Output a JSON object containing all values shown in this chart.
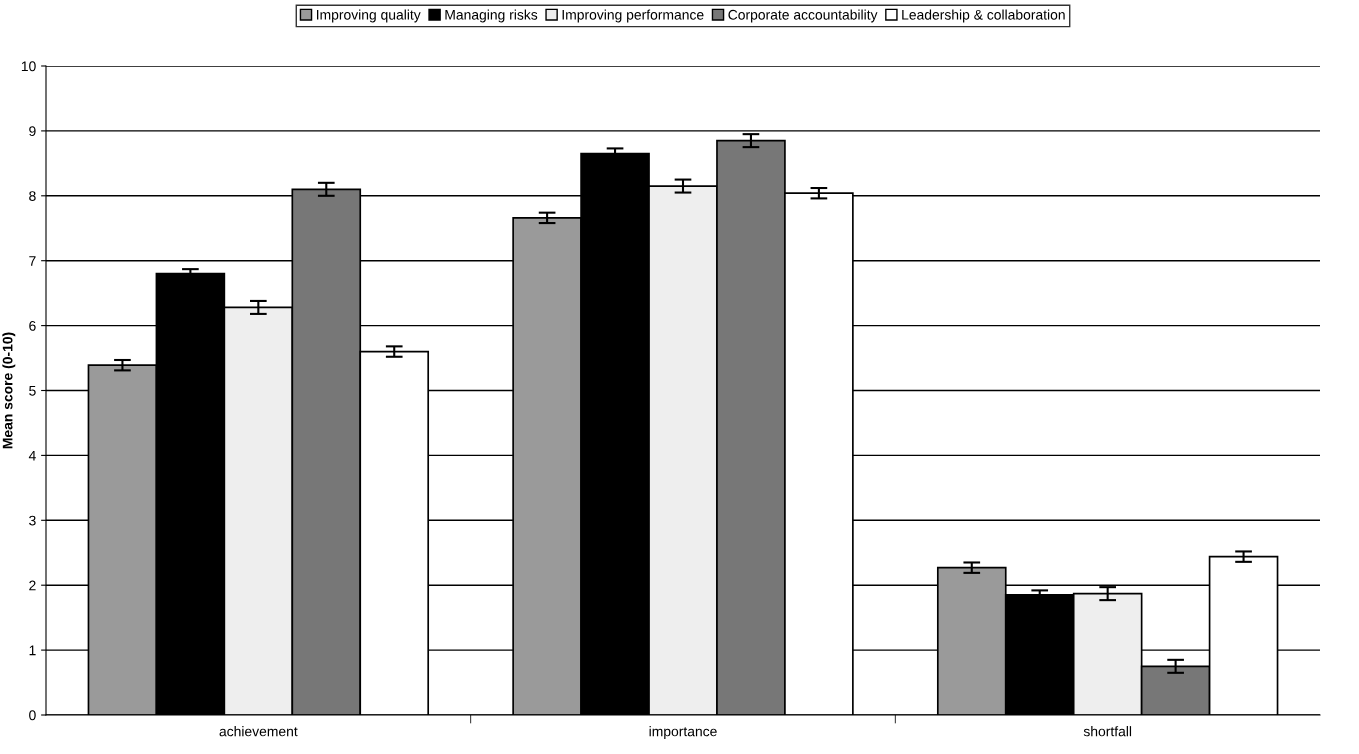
{
  "chart_data": {
    "type": "bar",
    "ylabel": "Mean score (0-10)",
    "categories": [
      "achievement",
      "importance",
      "shortfall"
    ],
    "series": [
      {
        "name": "Improving quality",
        "color": "#9a9a9a",
        "values": [
          5.39,
          7.66,
          2.27
        ],
        "errors": [
          0.08,
          0.08,
          0.08
        ]
      },
      {
        "name": "Managing risks",
        "color": "#000000",
        "values": [
          6.8,
          8.65,
          1.85
        ],
        "errors": [
          0.07,
          0.08,
          0.07
        ]
      },
      {
        "name": "Improving performance",
        "color": "#eeeeee",
        "values": [
          6.28,
          8.15,
          1.87
        ],
        "errors": [
          0.1,
          0.1,
          0.1
        ]
      },
      {
        "name": "Corporate accountability",
        "color": "#777777",
        "values": [
          8.1,
          8.85,
          0.75
        ],
        "errors": [
          0.1,
          0.1,
          0.1
        ]
      },
      {
        "name": "Leadership & collaboration",
        "color": "#ffffff",
        "values": [
          5.6,
          8.04,
          2.44
        ],
        "errors": [
          0.08,
          0.08,
          0.08
        ]
      }
    ],
    "ylim": [
      0,
      10
    ],
    "yticks": [
      0,
      1,
      2,
      3,
      4,
      5,
      6,
      7,
      8,
      9,
      10
    ],
    "grid": "y",
    "legend": "top"
  }
}
